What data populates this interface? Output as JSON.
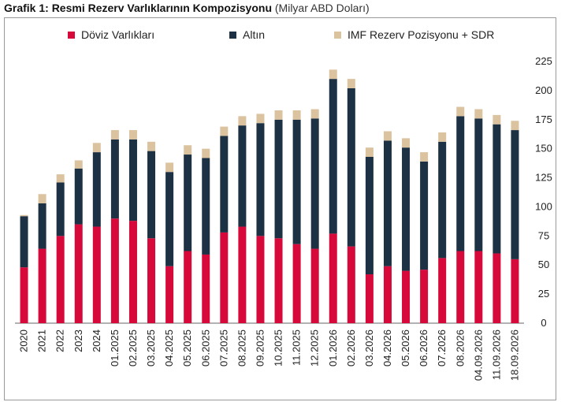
{
  "title": {
    "bold": "Grafik 1: Resmi Rezerv Varlıklarının Kompozisyonu",
    "normal": "(Milyar ABD Doları)"
  },
  "chart_data": {
    "type": "bar",
    "stacked": true,
    "categories": [
      "2020",
      "2021",
      "2022",
      "2023",
      "2024",
      "01.2025",
      "02.2025",
      "03.2025",
      "04.2025",
      "05.2025",
      "06.2025",
      "07.2025",
      "08.2025",
      "09.2025",
      "10.2025",
      "11.2025",
      "12.2025",
      "01.2026",
      "02.2026",
      "03.2026",
      "04.2026",
      "05.2026",
      "06.2026",
      "07.2026",
      "08.2026",
      "04.09.2026",
      "11.09.2026",
      "18.09.2026"
    ],
    "series": [
      {
        "name": "Döviz Varlıkları",
        "color": "#d7083a",
        "values": [
          48,
          64,
          75,
          85,
          83,
          90,
          88,
          73,
          49,
          62,
          59,
          78,
          83,
          75,
          73,
          68,
          64,
          77,
          66,
          42,
          49,
          45,
          46,
          56,
          62,
          62,
          60,
          55
        ]
      },
      {
        "name": "Altın",
        "color": "#1c3143",
        "values": [
          44,
          39,
          46,
          48,
          64,
          68,
          70,
          75,
          81,
          83,
          83,
          83,
          87,
          97,
          102,
          107,
          112,
          133,
          136,
          101,
          108,
          106,
          93,
          100,
          116,
          114,
          111,
          111
        ]
      },
      {
        "name": "IMF Rezerv Pozisyonu + SDR",
        "color": "#dcc3a0",
        "values": [
          1,
          8,
          7,
          7,
          8,
          8,
          8,
          8,
          8,
          8,
          8,
          8,
          8,
          8,
          8,
          8,
          8,
          8,
          8,
          8,
          8,
          8,
          8,
          8,
          8,
          8,
          8,
          8
        ]
      }
    ],
    "ylim": [
      0,
      225
    ],
    "yticks": [
      "0",
      "25",
      "50",
      "75",
      "100",
      "125",
      "150",
      "175",
      "200",
      "225"
    ],
    "y_axis_side": "right",
    "grid": false,
    "legend_position": "top"
  }
}
